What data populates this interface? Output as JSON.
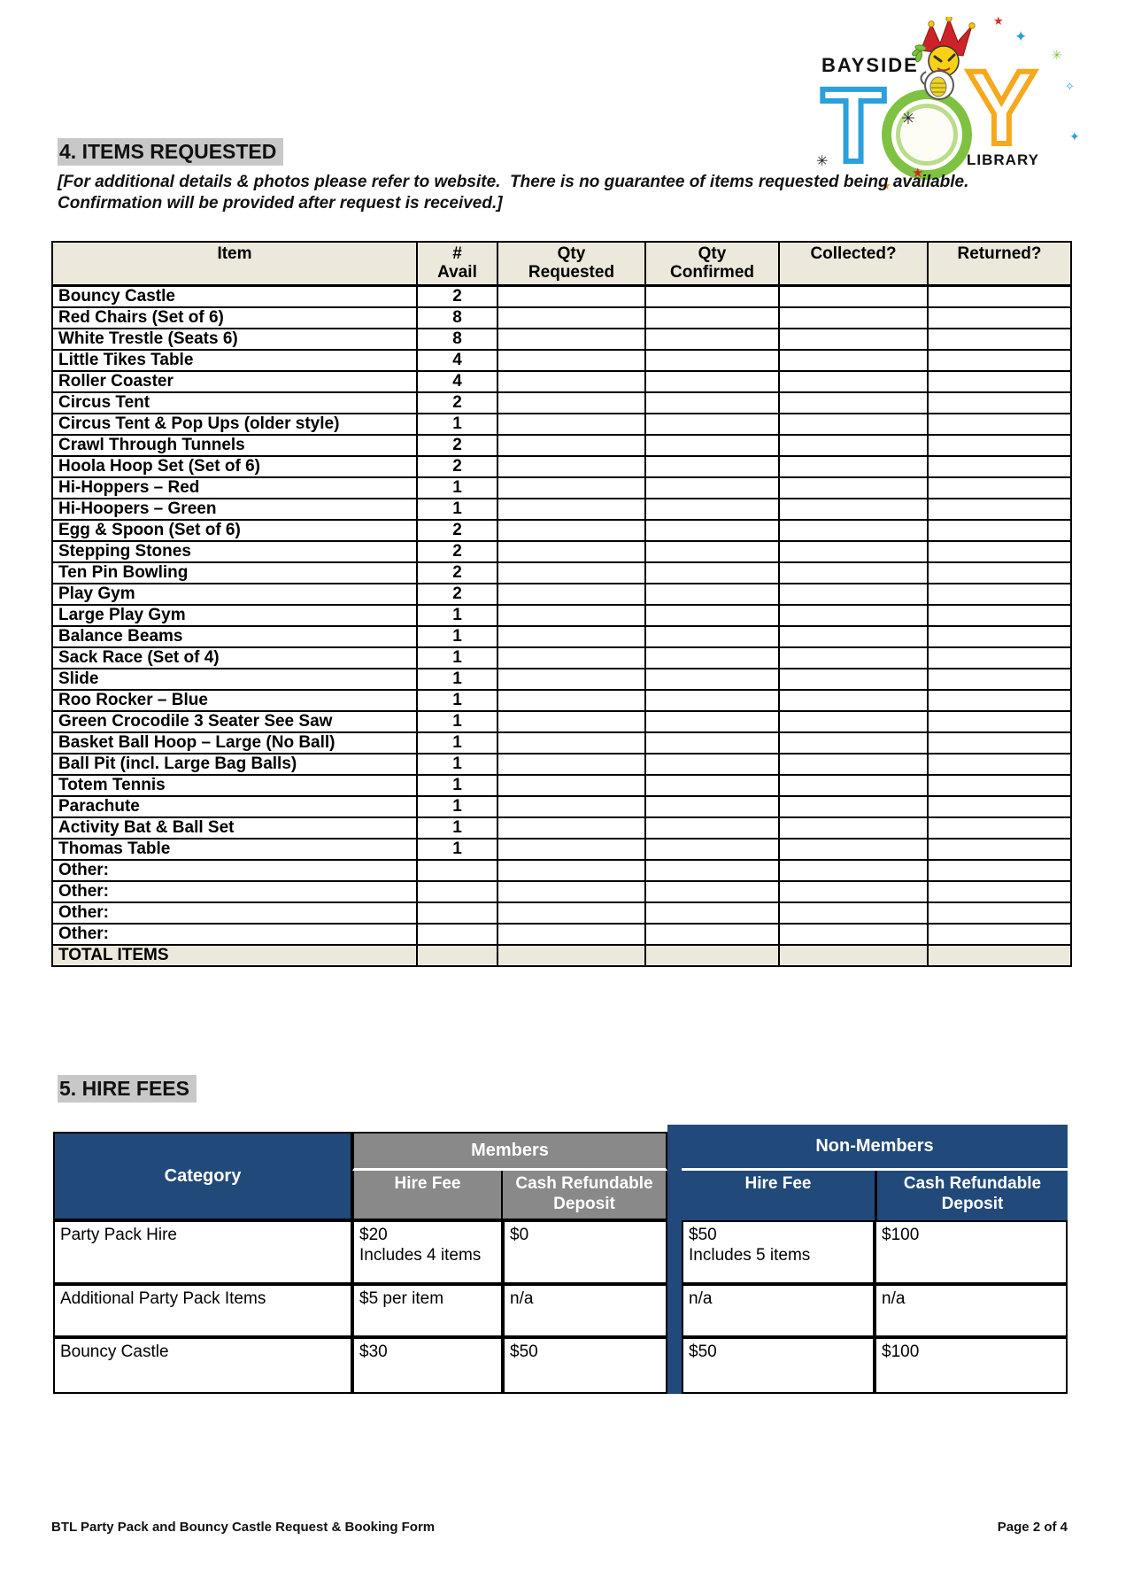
{
  "logo": {
    "name_top": "BAYSIDE",
    "name_bottom": "LIBRARY",
    "toy_t": "T",
    "toy_y": "Y",
    "colors": {
      "t_blue": "#2AA0DC",
      "o_green": "#7FC241",
      "y_orange": "#F7A81B"
    }
  },
  "sections": {
    "items": {
      "heading": "4. ITEMS REQUESTED",
      "note_line1": "[For additional details & photos please refer to website.  There is no guarantee of items requested being available.",
      "note_line2": "Confirmation will be provided after request is received.]"
    },
    "fees": {
      "heading": "5. HIRE FEES"
    }
  },
  "items_table": {
    "headers": {
      "item": "Item",
      "avail": [
        "#",
        "Avail"
      ],
      "qty_requested": [
        "Qty",
        "Requested"
      ],
      "qty_confirmed": [
        "Qty",
        "Confirmed"
      ],
      "collected": "Collected?",
      "returned": "Returned?"
    },
    "rows": [
      {
        "name": "Bouncy Castle",
        "avail": "2"
      },
      {
        "name": "Red Chairs (Set of 6)",
        "avail": "8"
      },
      {
        "name": "White Trestle (Seats 6)",
        "avail": "8"
      },
      {
        "name": "Little Tikes Table",
        "avail": "4"
      },
      {
        "name": "Roller Coaster",
        "avail": "4"
      },
      {
        "name": "Circus Tent",
        "avail": "2"
      },
      {
        "name": "Circus Tent & Pop Ups (older style)",
        "avail": "1"
      },
      {
        "name": "Crawl Through Tunnels",
        "avail": "2"
      },
      {
        "name": "Hoola Hoop Set (Set of 6)",
        "avail": "2"
      },
      {
        "name": "Hi-Hoppers – Red",
        "avail": "1"
      },
      {
        "name": "Hi-Hoopers – Green",
        "avail": "1"
      },
      {
        "name": "Egg & Spoon (Set of 6)",
        "avail": "2"
      },
      {
        "name": "Stepping Stones",
        "avail": "2"
      },
      {
        "name": "Ten Pin Bowling",
        "avail": "2"
      },
      {
        "name": "Play Gym",
        "avail": "2"
      },
      {
        "name": "Large Play Gym",
        "avail": "1"
      },
      {
        "name": "Balance Beams",
        "avail": "1"
      },
      {
        "name": "Sack Race (Set of 4)",
        "avail": "1"
      },
      {
        "name": "Slide",
        "avail": "1"
      },
      {
        "name": "Roo Rocker – Blue",
        "avail": "1"
      },
      {
        "name": "Green Crocodile 3 Seater See Saw",
        "avail": "1"
      },
      {
        "name": "Basket Ball Hoop – Large (No Ball)",
        "avail": "1"
      },
      {
        "name": "Ball Pit (incl. Large Bag Balls)",
        "avail": "1"
      },
      {
        "name": "Totem Tennis",
        "avail": "1"
      },
      {
        "name": "Parachute",
        "avail": "1"
      },
      {
        "name": "Activity Bat & Ball Set",
        "avail": "1"
      },
      {
        "name": "Thomas Table",
        "avail": "1"
      },
      {
        "name": "Other:",
        "avail": ""
      },
      {
        "name": "Other:",
        "avail": ""
      },
      {
        "name": "Other:",
        "avail": ""
      },
      {
        "name": "Other:",
        "avail": ""
      }
    ],
    "total_label": "TOTAL ITEMS"
  },
  "fees_table": {
    "category_header": "Category",
    "members_header": "Members",
    "non_members_header": "Non-Members",
    "hire_fee_header": "Hire Fee",
    "deposit_header": "Cash Refundable Deposit",
    "rows": [
      {
        "category": "Party Pack Hire",
        "member_fee": "$20",
        "member_fee_note": "Includes 4 items",
        "member_deposit": "$0",
        "non_member_fee": "$50",
        "non_member_fee_note": "Includes 5 items",
        "non_member_deposit": "$100"
      },
      {
        "category": "Additional Party Pack Items",
        "member_fee": "$5 per item",
        "member_fee_note": "",
        "member_deposit": "n/a",
        "non_member_fee": "n/a",
        "non_member_fee_note": "",
        "non_member_deposit": "n/a"
      },
      {
        "category": "Bouncy Castle",
        "member_fee": "$30",
        "member_fee_note": "",
        "member_deposit": "$50",
        "non_member_fee": "$50",
        "non_member_fee_note": "",
        "non_member_deposit": "$100"
      }
    ],
    "colors": {
      "header_blue": "#21497A",
      "header_gray": "#898989"
    }
  },
  "footer": {
    "left": "BTL Party Pack and Bouncy Castle Request & Booking Form",
    "right": "Page 2 of 4"
  },
  "colors": {
    "table_header_beige": "#ECE8DB",
    "heading_highlight": "#C8C8C8"
  }
}
